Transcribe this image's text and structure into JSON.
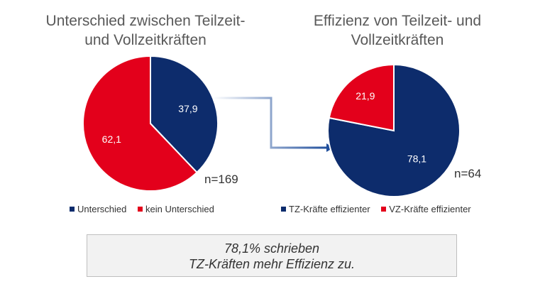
{
  "chart_data": [
    {
      "type": "pie",
      "title": "Unterschied zwischen Teilzeit- und Vollzeitkräften",
      "title_lines": [
        "Unterschied zwischen Teilzeit-",
        "und Vollzeitkräften"
      ],
      "slices": [
        {
          "label": "Unterschied",
          "value": 37.9,
          "display": "37,9",
          "color": "#0d2c6c",
          "text_color": "#ffffff"
        },
        {
          "label": "kein Unterschied",
          "value": 62.1,
          "display": "62,1",
          "color": "#e3001b",
          "text_color": "#ffffff"
        }
      ],
      "n_label": "n=169",
      "legend_position": "bottom"
    },
    {
      "type": "pie",
      "title": "Effizienz von Teilzeit- und Vollzeitkräften",
      "title_lines": [
        "Effizienz von Teilzeit- und",
        "Vollzeitkräften"
      ],
      "slices": [
        {
          "label": "TZ-Kräfte effizienter",
          "value": 78.1,
          "display": "78,1",
          "color": "#0d2c6c",
          "text_color": "#ffffff"
        },
        {
          "label": "VZ-Kräfte effizienter",
          "value": 21.9,
          "display": "21,9",
          "color": "#e3001b",
          "text_color": "#ffffff"
        }
      ],
      "n_label": "n=64",
      "legend_position": "bottom"
    }
  ],
  "callout": {
    "line1": "78,1% schrieben",
    "line2": "TZ-Kräften mehr Effizienz zu."
  },
  "arrow_color": "#1f4e9c"
}
